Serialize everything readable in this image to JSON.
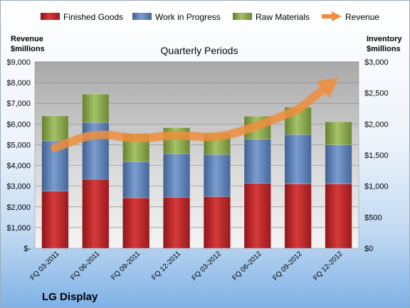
{
  "company": "LG Display",
  "chart_data": {
    "type": "bar",
    "subtype": "stacked-bar-with-line",
    "title": "Quarterly Periods",
    "categories": [
      "FQ 03-2011",
      "FQ 06-2011",
      "FQ 09-2011",
      "FQ 12-2011",
      "FQ 03-2012",
      "FQ 06-2012",
      "FQ 09-2012",
      "FQ 12-2012"
    ],
    "left_axis": {
      "label_line1": "Revenue",
      "label_line2": "$millions",
      "ylim": [
        0,
        9000
      ],
      "ticks": [
        "$-",
        "$1,000",
        "$2,000",
        "$3,000",
        "$4,000",
        "$5,000",
        "$6,000",
        "$7,000",
        "$8,000",
        "$9,000"
      ]
    },
    "right_axis": {
      "label_line1": "Inventory",
      "label_line2": "$millions",
      "ylim": [
        0,
        3000
      ],
      "ticks": [
        "$0",
        "$500",
        "$1,000",
        "$1,500",
        "$2,000",
        "$2,500",
        "$3,000"
      ]
    },
    "series": [
      {
        "name": "Finished Goods",
        "axis": "right",
        "color": "#c0262b",
        "values": [
          920,
          1110,
          810,
          820,
          830,
          1045,
          1035,
          1035
        ]
      },
      {
        "name": "Work in Progress",
        "axis": "right",
        "color": "#5b7fb5",
        "values": [
          810,
          915,
          585,
          700,
          680,
          710,
          795,
          630
        ]
      },
      {
        "name": "Raw Materials",
        "axis": "right",
        "color": "#8aaa4e",
        "values": [
          400,
          455,
          455,
          420,
          345,
          370,
          440,
          370
        ]
      },
      {
        "name": "Revenue",
        "axis": "left",
        "type": "line-arrow",
        "color": "#ee8e3d",
        "values": [
          4850,
          5600,
          5250,
          5500,
          5300,
          5900,
          6700,
          8250
        ]
      }
    ],
    "grid": true,
    "legend": "top"
  }
}
